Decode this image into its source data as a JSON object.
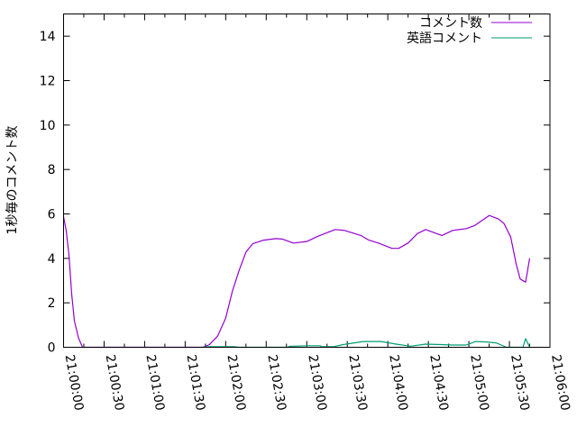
{
  "chart_data": {
    "type": "line",
    "title": "",
    "xlabel": "",
    "ylabel": "1秒毎のコメント数",
    "xlim": [
      "21:00:00",
      "21:06:00"
    ],
    "ylim": [
      0,
      15
    ],
    "x_ticks": [
      "21:00:00",
      "21:00:30",
      "21:01:00",
      "21:01:30",
      "21:02:00",
      "21:02:30",
      "21:03:00",
      "21:03:30",
      "21:04:00",
      "21:04:30",
      "21:05:00",
      "21:05:30",
      "21:06:00"
    ],
    "y_ticks": [
      "0",
      "2",
      "4",
      "6",
      "8",
      "10",
      "12",
      "14"
    ],
    "grid": false,
    "legend_position": "top-right",
    "series": [
      {
        "name": "コメント数",
        "color": "#9400d3",
        "points": [
          [
            "21:00:00",
            5.88
          ],
          [
            "21:00:02",
            5.23
          ],
          [
            "21:00:04",
            4.15
          ],
          [
            "21:00:06",
            2.4
          ],
          [
            "21:00:08",
            1.19
          ],
          [
            "21:00:11",
            0.43
          ],
          [
            "21:00:14",
            0
          ],
          [
            "21:01:43",
            0
          ],
          [
            "21:01:48",
            0.12
          ],
          [
            "21:01:54",
            0.5
          ],
          [
            "21:02:00",
            1.31
          ],
          [
            "21:02:05",
            2.53
          ],
          [
            "21:02:10",
            3.47
          ],
          [
            "21:02:15",
            4.28
          ],
          [
            "21:02:20",
            4.66
          ],
          [
            "21:02:28",
            4.82
          ],
          [
            "21:02:37",
            4.89
          ],
          [
            "21:02:42",
            4.87
          ],
          [
            "21:02:50",
            4.69
          ],
          [
            "21:03:00",
            4.76
          ],
          [
            "21:03:08",
            4.99
          ],
          [
            "21:03:21",
            5.3
          ],
          [
            "21:03:28",
            5.26
          ],
          [
            "21:03:40",
            5.03
          ],
          [
            "21:03:46",
            4.82
          ],
          [
            "21:03:53",
            4.69
          ],
          [
            "21:04:03",
            4.45
          ],
          [
            "21:04:08",
            4.45
          ],
          [
            "21:04:15",
            4.69
          ],
          [
            "21:04:22",
            5.12
          ],
          [
            "21:04:28",
            5.3
          ],
          [
            "21:04:40",
            5.03
          ],
          [
            "21:04:48",
            5.26
          ],
          [
            "21:04:58",
            5.34
          ],
          [
            "21:05:04",
            5.47
          ],
          [
            "21:05:15",
            5.93
          ],
          [
            "21:05:22",
            5.77
          ],
          [
            "21:05:26",
            5.57
          ],
          [
            "21:05:31",
            4.96
          ],
          [
            "21:05:35",
            3.75
          ],
          [
            "21:05:38",
            3.07
          ],
          [
            "21:05:42",
            2.93
          ],
          [
            "21:05:45",
            4.01
          ]
        ]
      },
      {
        "name": "英語コメント",
        "color": "#009e73",
        "points": [
          [
            "21:01:43",
            0
          ],
          [
            "21:01:46",
            0.03
          ],
          [
            "21:02:00",
            0.03
          ],
          [
            "21:02:06",
            0.03
          ],
          [
            "21:02:10",
            0
          ],
          [
            "21:02:46",
            0
          ],
          [
            "21:02:47",
            0.04
          ],
          [
            "21:03:00",
            0.07
          ],
          [
            "21:03:10",
            0.07
          ],
          [
            "21:03:11",
            0.03
          ],
          [
            "21:03:20",
            0.03
          ],
          [
            "21:03:27",
            0.12
          ],
          [
            "21:03:33",
            0.18
          ],
          [
            "21:03:42",
            0.26
          ],
          [
            "21:03:55",
            0.26
          ],
          [
            "21:04:06",
            0.14
          ],
          [
            "21:04:17",
            0.05
          ],
          [
            "21:04:28",
            0.14
          ],
          [
            "21:04:39",
            0.12
          ],
          [
            "21:04:48",
            0.1
          ],
          [
            "21:04:58",
            0.1
          ],
          [
            "21:05:05",
            0.26
          ],
          [
            "21:05:13",
            0.24
          ],
          [
            "21:05:20",
            0.2
          ],
          [
            "21:05:28",
            0
          ],
          [
            "21:05:40",
            0
          ],
          [
            "21:05:42",
            0.39
          ],
          [
            "21:05:45",
            0
          ]
        ]
      }
    ]
  }
}
